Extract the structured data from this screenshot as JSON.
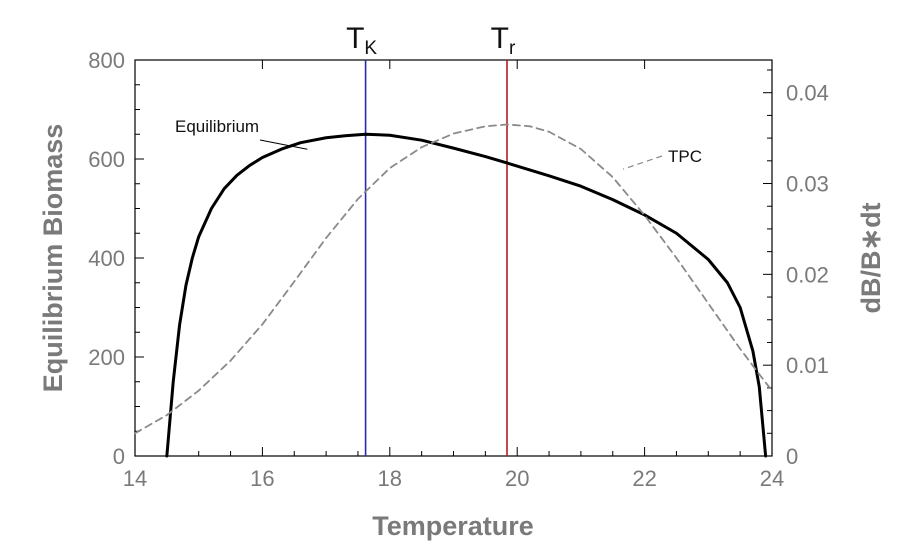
{
  "chart_data": {
    "type": "line",
    "title": "",
    "xlabel": "Temperature",
    "ylabel": "Equilibrium Biomass",
    "y2label": "dB/B∗dt",
    "xlim": [
      14,
      24
    ],
    "ylim": [
      0,
      800
    ],
    "y2lim": [
      0,
      0.0436
    ],
    "x_ticks": [
      14,
      16,
      18,
      20,
      22,
      24
    ],
    "y_ticks": [
      0,
      200,
      400,
      600,
      800
    ],
    "y2_ticks": [
      {
        "value": 0,
        "label": "0"
      },
      {
        "value": 0.01,
        "label": "0.01"
      },
      {
        "value": 0.02,
        "label": "0.02"
      },
      {
        "value": 0.03,
        "label": "0.03"
      },
      {
        "value": 0.04,
        "label": "0.04"
      }
    ],
    "grid": false,
    "legend": "none",
    "series": [
      {
        "name": "Equilibrium",
        "axis": "left",
        "style": "solid",
        "color": "#000000",
        "points": [
          [
            14.5,
            0
          ],
          [
            14.6,
            150
          ],
          [
            14.7,
            265
          ],
          [
            14.8,
            345
          ],
          [
            14.9,
            400
          ],
          [
            15.0,
            443
          ],
          [
            15.2,
            500
          ],
          [
            15.4,
            540
          ],
          [
            15.6,
            567
          ],
          [
            15.8,
            587
          ],
          [
            16.0,
            603
          ],
          [
            16.3,
            620
          ],
          [
            16.6,
            633
          ],
          [
            17.0,
            643
          ],
          [
            17.3,
            647
          ],
          [
            17.62,
            650
          ],
          [
            18.0,
            648
          ],
          [
            18.5,
            638
          ],
          [
            19.0,
            622
          ],
          [
            19.5,
            605
          ],
          [
            19.84,
            592
          ],
          [
            20.5,
            566
          ],
          [
            21.0,
            545
          ],
          [
            21.5,
            518
          ],
          [
            22.0,
            487
          ],
          [
            22.5,
            450
          ],
          [
            23.0,
            397
          ],
          [
            23.3,
            350
          ],
          [
            23.5,
            300
          ],
          [
            23.7,
            212
          ],
          [
            23.8,
            140
          ],
          [
            23.9,
            0
          ]
        ]
      },
      {
        "name": "TPC",
        "axis": "right",
        "style": "dashed",
        "color": "#8a8a8a",
        "points": [
          [
            14.0,
            0.0025
          ],
          [
            14.5,
            0.0045
          ],
          [
            15.0,
            0.0072
          ],
          [
            15.5,
            0.0105
          ],
          [
            16.0,
            0.0145
          ],
          [
            16.5,
            0.0192
          ],
          [
            17.0,
            0.024
          ],
          [
            17.5,
            0.0283
          ],
          [
            18.0,
            0.0317
          ],
          [
            18.5,
            0.034
          ],
          [
            19.0,
            0.0355
          ],
          [
            19.5,
            0.0363
          ],
          [
            19.84,
            0.0365
          ],
          [
            20.2,
            0.0363
          ],
          [
            20.5,
            0.0357
          ],
          [
            21.0,
            0.0338
          ],
          [
            21.5,
            0.0307
          ],
          [
            22.0,
            0.0265
          ],
          [
            22.5,
            0.0218
          ],
          [
            23.0,
            0.0168
          ],
          [
            23.5,
            0.0118
          ],
          [
            23.8,
            0.009
          ],
          [
            24.0,
            0.0072
          ]
        ]
      }
    ],
    "annotations": [
      {
        "text": "Equilibrium",
        "points_to": [
          16.8,
          640
        ]
      },
      {
        "text": "TPC",
        "points_to": [
          21.6,
          0.0318
        ]
      }
    ],
    "vertical_lines": [
      {
        "label": "T",
        "subscript": "K",
        "x": 17.62,
        "color": "#2a2ab0"
      },
      {
        "label": "T",
        "subscript": "r",
        "x": 19.84,
        "color": "#b02020"
      }
    ]
  }
}
